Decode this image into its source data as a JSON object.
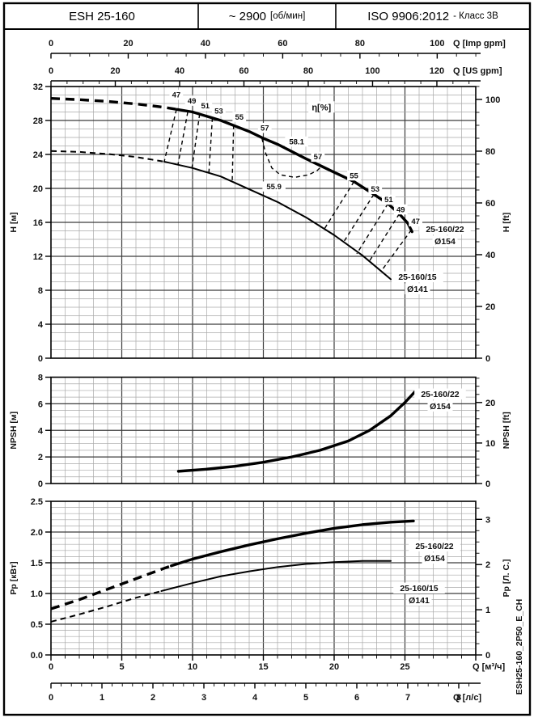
{
  "header": {
    "model": "ESH 25-160",
    "speed": "~ 2900",
    "speed_unit": "[об/мин]",
    "standard": "ISO 9906:2012",
    "standard_class": "- Класс 3В"
  },
  "drawing_number": "ESH25-160_2P50_E_CH",
  "q_axes": {
    "imp_gpm": {
      "label": "Q [Imp gpm]",
      "tick_labels": [
        0,
        20,
        40,
        60,
        80,
        100
      ],
      "minor_step": 5,
      "max": 110,
      "m3h_per_unit": 0.272765
    },
    "us_gpm": {
      "label": "Q [US gpm]",
      "tick_labels": [
        0,
        20,
        40,
        60,
        80,
        100,
        120
      ],
      "minor_step": 5,
      "max": 130,
      "m3h_per_unit": 0.227125
    },
    "m3h": {
      "label": "Q [м³/ч]",
      "tick_labels": [
        0,
        5,
        10,
        15,
        20,
        25
      ],
      "minor_step": 1,
      "max": 30,
      "m3h_per_unit": 1
    },
    "ls": {
      "label": "Q [л/с]",
      "tick_labels": [
        0,
        1,
        2,
        3,
        4,
        5,
        6,
        7,
        8
      ],
      "minor_step": 0.2,
      "max": 8.2,
      "m3h_per_unit": 3.6
    }
  },
  "chart_data": [
    {
      "id": "head",
      "type": "line",
      "ylabel_left": "H [м]",
      "ylabel_right": "H [ft]",
      "ylim": [
        0,
        32
      ],
      "yticks_left": [
        "0",
        "4",
        "8",
        "12",
        "16",
        "20",
        "24",
        "28",
        "32"
      ],
      "yticks_right": [
        "0",
        "20",
        "40",
        "60",
        "80",
        "100"
      ],
      "right_unit_factor": 0.3048,
      "right_minor_step": 5,
      "right_minor_max": 105,
      "grid_minor_step": 1,
      "grid_major_step": 4,
      "series": [
        {
          "name": "25-160/22",
          "diameter": "Ø154",
          "dashed": [
            [
              0,
              30.6
            ],
            [
              2,
              30.45
            ],
            [
              4,
              30.25
            ],
            [
              6,
              29.95
            ],
            [
              8,
              29.55
            ],
            [
              8.9,
              29.3
            ]
          ],
          "solid": [
            [
              8.9,
              29.3
            ],
            [
              10,
              29.0
            ],
            [
              12,
              28.0
            ],
            [
              14,
              26.7
            ],
            [
              15,
              25.9
            ],
            [
              16,
              25.2
            ],
            [
              18,
              23.5
            ],
            [
              20,
              21.9
            ],
            [
              21.4,
              20.8
            ],
            [
              22.8,
              19.3
            ],
            [
              23.8,
              18.2
            ],
            [
              24.6,
              17.0
            ],
            [
              25.2,
              15.9
            ],
            [
              25.5,
              14.9
            ]
          ]
        },
        {
          "name": "25-160/15",
          "diameter": "Ø141",
          "dashed": [
            [
              0,
              24.4
            ],
            [
              2,
              24.3
            ],
            [
              4,
              24.05
            ],
            [
              6,
              23.7
            ],
            [
              8,
              23.15
            ]
          ],
          "solid": [
            [
              8,
              23.15
            ],
            [
              10,
              22.4
            ],
            [
              12,
              21.4
            ],
            [
              14,
              19.9
            ],
            [
              16,
              18.4
            ],
            [
              18,
              16.6
            ],
            [
              20,
              14.5
            ],
            [
              22,
              12.1
            ],
            [
              24,
              9.3
            ]
          ]
        }
      ],
      "efficiency": {
        "iso_lines": [
          {
            "value": "47",
            "top": [
              8.86,
              29.3
            ],
            "bottom": [
              8.0,
              23.15
            ],
            "label_at": [
              8.85,
              31.0
            ]
          },
          {
            "value": "49",
            "top": [
              9.66,
              29.0
            ],
            "bottom": [
              8.97,
              22.8
            ],
            "label_at": [
              9.95,
              30.3
            ]
          },
          {
            "value": "51",
            "top": [
              10.5,
              28.75
            ],
            "bottom": [
              9.94,
              22.2
            ],
            "label_at": [
              10.9,
              29.7
            ]
          },
          {
            "value": "53",
            "top": [
              11.4,
              28.3
            ],
            "bottom": [
              11.14,
              21.5
            ],
            "label_at": [
              11.85,
              29.1
            ]
          },
          {
            "value": "55",
            "top": [
              12.9,
              27.45
            ],
            "bottom": [
              12.8,
              20.8
            ],
            "label_at": [
              13.3,
              28.4
            ]
          },
          {
            "value": "55",
            "top": [
              21.4,
              20.8
            ],
            "bottom": [
              19.3,
              15.2
            ],
            "label_at": [
              21.4,
              21.5
            ]
          },
          {
            "value": "53",
            "top": [
              22.8,
              19.3
            ],
            "bottom": [
              20.6,
              13.5
            ],
            "label_at": [
              22.9,
              19.9
            ]
          },
          {
            "value": "51",
            "top": [
              23.8,
              18.2
            ],
            "bottom": [
              21.6,
              12.3
            ],
            "label_at": [
              23.85,
              18.65
            ]
          },
          {
            "value": "49",
            "top": [
              24.6,
              17.0
            ],
            "bottom": [
              22.4,
              11.2
            ],
            "label_at": [
              24.7,
              17.5
            ]
          },
          {
            "value": "47",
            "top": [
              25.45,
              15.1
            ],
            "bottom": [
              23.3,
              10.2
            ],
            "label_at": [
              25.75,
              16.1
            ]
          }
        ],
        "bep_contour": [
          [
            14.9,
            25.9
          ],
          [
            15.15,
            24.2
          ],
          [
            15.6,
            22.4
          ],
          [
            16.2,
            21.6
          ],
          [
            17.2,
            21.3
          ],
          [
            18.2,
            21.6
          ],
          [
            18.8,
            22.1
          ],
          [
            19.1,
            22.6
          ]
        ],
        "labels": [
          {
            "text": "η[%]",
            "at": [
              19.1,
              29.5
            ],
            "size": 11
          },
          {
            "text": "57",
            "at": [
              15.1,
              27.1
            ]
          },
          {
            "text": "58.1",
            "at": [
              17.35,
              25.5
            ]
          },
          {
            "text": "57",
            "at": [
              18.85,
              23.7
            ]
          },
          {
            "text": "55.9",
            "at": [
              15.75,
              20.2
            ]
          }
        ]
      }
    },
    {
      "id": "npsh",
      "type": "line",
      "ylabel_left": "NPSH [м]",
      "ylabel_right": "NPSH [ft]",
      "ylim": [
        0,
        8
      ],
      "yticks_left": [
        "0",
        "2",
        "4",
        "6",
        "8"
      ],
      "yticks_right": [
        "0",
        "10",
        "20"
      ],
      "right_unit_factor": 0.3048,
      "right_minor_step": 2,
      "right_minor_max": 26,
      "grid_minor_step": 0.5,
      "grid_major_step": 2,
      "series": [
        {
          "name": "25-160/22",
          "diameter": "Ø154",
          "dashed": [],
          "solid": [
            [
              9,
              0.92
            ],
            [
              11,
              1.08
            ],
            [
              13,
              1.3
            ],
            [
              15,
              1.6
            ],
            [
              17,
              2.0
            ],
            [
              19,
              2.5
            ],
            [
              21,
              3.2
            ],
            [
              22.5,
              4.0
            ],
            [
              24,
              5.1
            ],
            [
              25,
              6.1
            ],
            [
              25.7,
              6.9
            ]
          ]
        }
      ]
    },
    {
      "id": "power",
      "type": "line",
      "ylabel_left": "Pp [кВт]",
      "ylabel_right": "Pp [Л. С.]",
      "ylim": [
        0,
        2.5
      ],
      "yticks_left": [
        "0.0",
        "0.5",
        "1.0",
        "1.5",
        "2.0",
        "2.5"
      ],
      "yticks_right": [
        "0",
        "1",
        "2",
        "3"
      ],
      "right_unit_factor": 0.7355,
      "right_minor_step": 0.25,
      "right_minor_max": 3.3,
      "grid_minor_step": 0.1,
      "grid_major_step": 0.5,
      "series": [
        {
          "name": "25-160/22",
          "diameter": "Ø154",
          "dashed": [
            [
              0,
              0.75
            ],
            [
              2,
              0.9
            ],
            [
              4,
              1.07
            ],
            [
              6,
              1.24
            ],
            [
              8,
              1.41
            ],
            [
              8.5,
              1.45
            ]
          ],
          "solid": [
            [
              8.5,
              1.45
            ],
            [
              10,
              1.56
            ],
            [
              12,
              1.68
            ],
            [
              14,
              1.79
            ],
            [
              16,
              1.89
            ],
            [
              18,
              1.98
            ],
            [
              20,
              2.06
            ],
            [
              22,
              2.12
            ],
            [
              24,
              2.16
            ],
            [
              25.6,
              2.18
            ]
          ]
        },
        {
          "name": "25-160/15",
          "diameter": "Ø141",
          "dashed": [
            [
              0,
              0.54
            ],
            [
              2,
              0.66
            ],
            [
              4,
              0.79
            ],
            [
              6,
              0.93
            ],
            [
              7.8,
              1.04
            ]
          ],
          "solid": [
            [
              7.8,
              1.04
            ],
            [
              10,
              1.17
            ],
            [
              12,
              1.28
            ],
            [
              14,
              1.36
            ],
            [
              16,
              1.43
            ],
            [
              18,
              1.48
            ],
            [
              20,
              1.51
            ],
            [
              22,
              1.53
            ],
            [
              24,
              1.53
            ]
          ]
        }
      ]
    }
  ]
}
